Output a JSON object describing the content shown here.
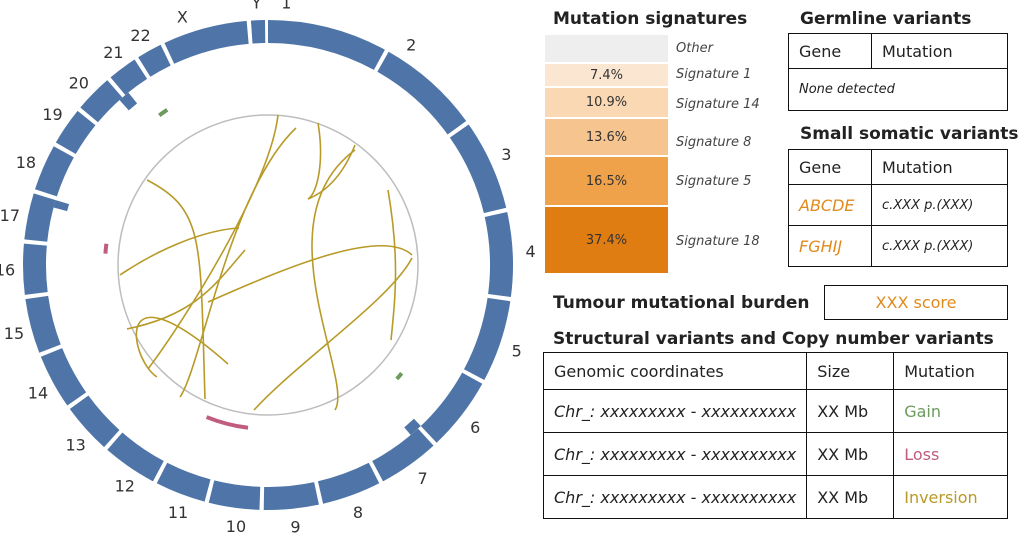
{
  "colors": {
    "chromosome": "#4f75a8",
    "gain": "#6d9a5d",
    "loss": "#c05c7e",
    "inversion": "#b89a28",
    "gene": "#e08a1c",
    "score": "#e08a1c",
    "ring": "#bdbdbd"
  },
  "circos": {
    "chromosomes": [
      "1",
      "2",
      "3",
      "4",
      "5",
      "6",
      "7",
      "8",
      "9",
      "10",
      "11",
      "12",
      "13",
      "14",
      "15",
      "16",
      "17",
      "18",
      "19",
      "20",
      "21",
      "22",
      "X",
      "Y"
    ],
    "icons": {
      "gain_marks": "gain-arc-icon",
      "loss_marks": "loss-arc-icon",
      "links": "structural-link-icon"
    }
  },
  "signatures": {
    "title": "Mutation signatures",
    "items": [
      {
        "label": "Other",
        "value": "",
        "color": "#eeeeee"
      },
      {
        "label": "Signature 1",
        "value": "7.4%",
        "color": "#fbe6d1"
      },
      {
        "label": "Signature 14",
        "value": "10.9%",
        "color": "#f9d8b3"
      },
      {
        "label": "Signature 8",
        "value": "13.6%",
        "color": "#f6c48f"
      },
      {
        "label": "Signature 5",
        "value": "16.5%",
        "color": "#f0a24b"
      },
      {
        "label": "Signature 18",
        "value": "37.4%",
        "color": "#e07d12"
      }
    ]
  },
  "germline": {
    "title": "Germline variants",
    "headers": [
      "Gene",
      "Mutation"
    ],
    "empty_text": "None detected"
  },
  "somatic": {
    "title": "Small somatic variants",
    "headers": [
      "Gene",
      "Mutation"
    ],
    "rows": [
      {
        "gene": "ABCDE",
        "mutation": "c.XXX p.(XXX)"
      },
      {
        "gene": "FGHIJ",
        "mutation": "c.XXX p.(XXX)"
      }
    ]
  },
  "tmb": {
    "title": "Tumour mutational burden",
    "value": "XXX score"
  },
  "structural": {
    "title": "Structural variants and Copy number variants",
    "headers": [
      "Genomic coordinates",
      "Size",
      "Mutation"
    ],
    "rows": [
      {
        "coords": "Chr_: xxxxxxxxx - xxxxxxxxxx",
        "size": "XX Mb",
        "mutation": "Gain",
        "type": "gain"
      },
      {
        "coords": "Chr_: xxxxxxxxx - xxxxxxxxxx",
        "size": "XX Mb",
        "mutation": "Loss",
        "type": "loss"
      },
      {
        "coords": "Chr_: xxxxxxxxx - xxxxxxxxxx",
        "size": "XX Mb",
        "mutation": "Inversion",
        "type": "inversion"
      }
    ]
  }
}
